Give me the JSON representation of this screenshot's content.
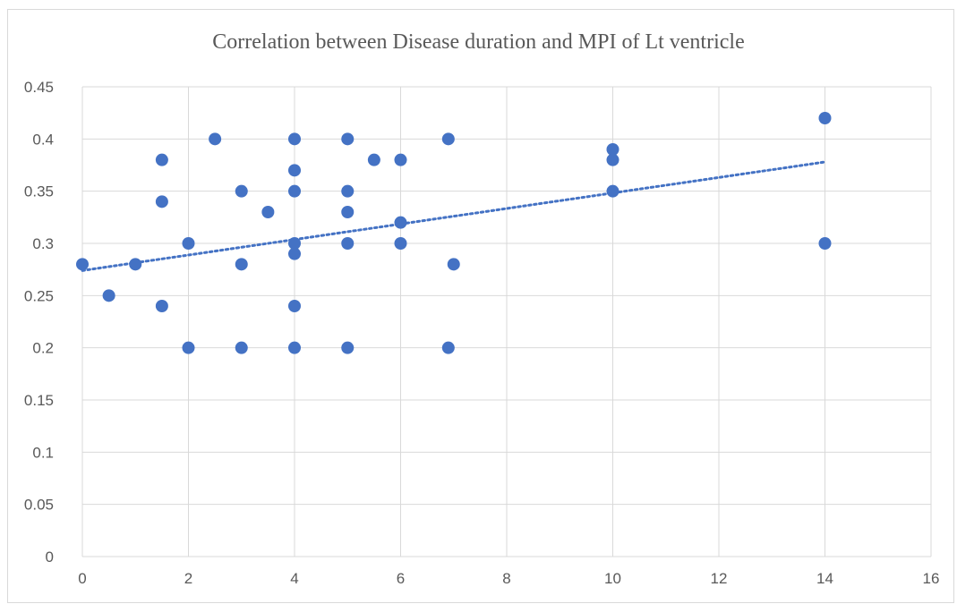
{
  "chart_data": {
    "type": "scatter",
    "title": "Correlation between Disease duration and MPI of Lt ventricle",
    "xlabel": "",
    "ylabel": "",
    "xlim": [
      0,
      16
    ],
    "ylim": [
      0,
      0.45
    ],
    "x_ticks": [
      "0",
      "2",
      "4",
      "6",
      "8",
      "10",
      "12",
      "14",
      "16"
    ],
    "y_ticks": [
      "0",
      "0.05",
      "0.1",
      "0.15",
      "0.2",
      "0.25",
      "0.3",
      "0.35",
      "0.4",
      "0.45"
    ],
    "grid": true,
    "legend": "none",
    "points": [
      [
        0,
        0.28
      ],
      [
        0.5,
        0.25
      ],
      [
        1,
        0.28
      ],
      [
        1.5,
        0.38
      ],
      [
        1.5,
        0.34
      ],
      [
        1.5,
        0.24
      ],
      [
        2,
        0.3
      ],
      [
        2,
        0.2
      ],
      [
        2.5,
        0.4
      ],
      [
        3,
        0.35
      ],
      [
        3,
        0.28
      ],
      [
        3,
        0.2
      ],
      [
        3.5,
        0.33
      ],
      [
        4,
        0.4
      ],
      [
        4,
        0.37
      ],
      [
        4,
        0.35
      ],
      [
        4,
        0.3
      ],
      [
        4,
        0.29
      ],
      [
        4,
        0.24
      ],
      [
        4,
        0.2
      ],
      [
        5,
        0.4
      ],
      [
        5,
        0.35
      ],
      [
        5,
        0.33
      ],
      [
        5,
        0.3
      ],
      [
        5,
        0.2
      ],
      [
        5.5,
        0.38
      ],
      [
        6,
        0.38
      ],
      [
        6,
        0.32
      ],
      [
        6,
        0.3
      ],
      [
        6.9,
        0.4
      ],
      [
        6.9,
        0.2
      ],
      [
        7,
        0.28
      ],
      [
        10,
        0.39
      ],
      [
        10,
        0.38
      ],
      [
        10,
        0.35
      ],
      [
        14,
        0.42
      ],
      [
        14,
        0.3
      ]
    ],
    "trendline": {
      "style": "dotted",
      "x": [
        0,
        14
      ],
      "y": [
        0.274,
        0.378
      ]
    },
    "colors": {
      "marker": "#4472c4",
      "trendline": "#4472c4",
      "grid": "#d9d9d9"
    }
  }
}
